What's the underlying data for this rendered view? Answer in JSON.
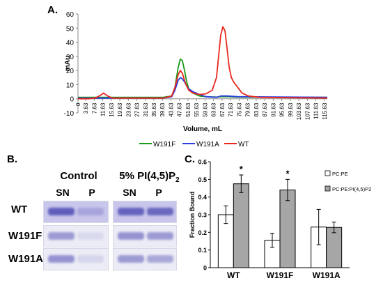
{
  "panels": {
    "a": "A.",
    "b": "B.",
    "c": "C."
  },
  "chromatogram": {
    "type": "line",
    "ylabel": "mAu",
    "xlabel": "Volume, mL",
    "ylim": [
      -10,
      60
    ],
    "yticks": [
      "60",
      "50",
      "40",
      "30",
      "20",
      "10",
      "0",
      "-10"
    ],
    "xlim": [
      0,
      117
    ],
    "xticks": [
      "0",
      "3.63",
      "7.63",
      "11.63",
      "15.63",
      "19.63",
      "23.63",
      "27.63",
      "31.63",
      "35.63",
      "39.63",
      "43.63",
      "47.63",
      "51.63",
      "55.63",
      "59.63",
      "63.63",
      "67.63",
      "71.63",
      "75.63",
      "79.63",
      "83.63",
      "87.63",
      "91.63",
      "95.63",
      "99.63",
      "103.63",
      "107.63",
      "111.63",
      "115.63"
    ],
    "series": [
      {
        "name": "W191F",
        "color": "#1a9a1a",
        "x": [
          0,
          10,
          40,
          44,
          45.5,
          47,
          48,
          49,
          50,
          51,
          52,
          54,
          57,
          60,
          65,
          67,
          70,
          75,
          117
        ],
        "y": [
          1,
          1,
          1,
          2,
          8,
          22,
          28,
          27,
          20,
          12,
          7,
          4,
          2,
          1.5,
          1.2,
          1.5,
          1.5,
          1.2,
          1
        ]
      },
      {
        "name": "W191A",
        "color": "#2b3ee0",
        "x": [
          0,
          10,
          40,
          44,
          45.5,
          47,
          48,
          49,
          50,
          51,
          52,
          54,
          57,
          60,
          65,
          67,
          70,
          75,
          117
        ],
        "y": [
          0.5,
          0.5,
          0.5,
          1.5,
          6,
          13,
          15,
          14,
          12,
          9,
          7,
          5,
          3,
          1.5,
          1,
          2,
          2,
          1.5,
          1
        ]
      },
      {
        "name": "WT",
        "color": "#e8281e",
        "x": [
          0,
          5,
          8,
          10,
          12,
          14,
          16,
          40,
          44,
          45.5,
          47,
          48,
          49,
          50,
          51,
          52,
          54,
          57,
          60,
          63,
          65,
          66,
          67,
          68,
          69,
          70,
          71,
          72,
          73,
          75,
          77,
          80,
          85,
          117
        ],
        "y": [
          0,
          0,
          0.5,
          2,
          4,
          2,
          0.5,
          0.5,
          2,
          8,
          17,
          20,
          18,
          13,
          9,
          6,
          4,
          3,
          3.5,
          6,
          15,
          30,
          45,
          51,
          48,
          35,
          22,
          15,
          12,
          8,
          4,
          2,
          1,
          0.5
        ]
      }
    ]
  },
  "gel": {
    "control_title": "Control",
    "pip2_title": "5% PI(4,5)P",
    "pip2_sub": "2",
    "lanes": [
      "SN",
      "P",
      "SN",
      "P"
    ],
    "rows": [
      "WT",
      "W191F",
      "W191A"
    ],
    "intensity": [
      [
        0.95,
        0.3,
        0.9,
        0.85
      ],
      [
        0.55,
        0.12,
        0.6,
        0.55
      ],
      [
        0.6,
        0.15,
        0.55,
        0.45
      ]
    ],
    "band_color": "#5a58b8"
  },
  "bar_chart": {
    "type": "bar",
    "ylabel": "Fraction Bound",
    "ylim": [
      0,
      0.6
    ],
    "yticks": [
      "0",
      "0.1",
      "0.2",
      "0.3",
      "0.4",
      "0.5",
      "0.6"
    ],
    "categories": [
      "WT",
      "W191F",
      "W191A"
    ],
    "series": [
      {
        "name": "PC:PE",
        "color": "#ffffff",
        "values": [
          0.3,
          0.155,
          0.23
        ],
        "err": [
          0.05,
          0.04,
          0.1
        ]
      },
      {
        "name": "PC:PE:PI(4,5)P2",
        "color": "#a6a6a6",
        "values": [
          0.475,
          0.44,
          0.228
        ],
        "err": [
          0.05,
          0.06,
          0.03
        ]
      }
    ],
    "significance": [
      "*",
      "*",
      ""
    ]
  }
}
